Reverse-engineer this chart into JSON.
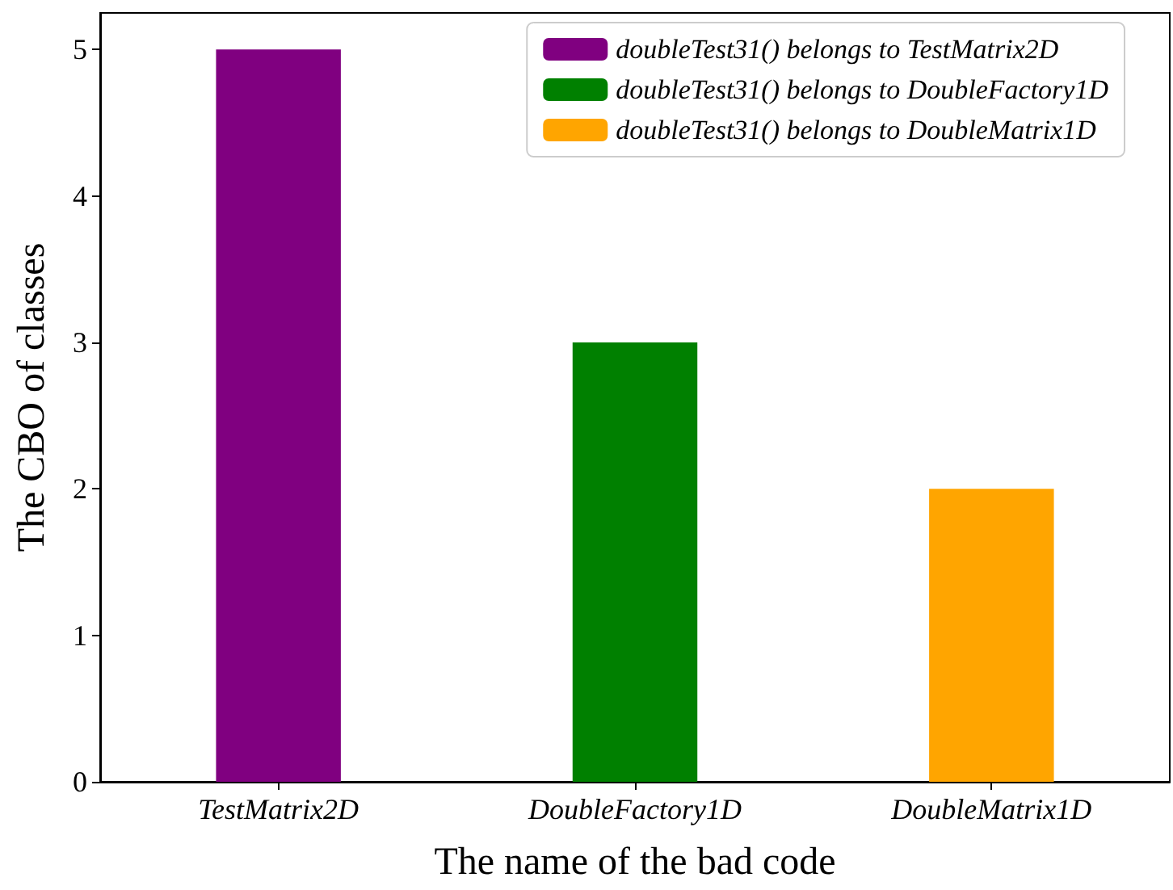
{
  "chart_data": {
    "type": "bar",
    "xlabel": "The name of the bad code",
    "ylabel": "The CBO of classes",
    "categories": [
      "TestMatrix2D",
      "DoubleFactory1D",
      "DoubleMatrix1D"
    ],
    "series": [
      {
        "name": "doubleTest31() belongs to TestMatrix2D",
        "color": "#800080",
        "values": [
          5,
          null,
          null
        ]
      },
      {
        "name": "doubleTest31() belongs to DoubleFactory1D",
        "color": "#008000",
        "values": [
          null,
          3,
          null
        ]
      },
      {
        "name": "doubleTest31() belongs to DoubleMatrix1D",
        "color": "#ffa500",
        "values": [
          null,
          null,
          2
        ]
      }
    ],
    "ylim": [
      0,
      5.25
    ],
    "yticks": [
      0,
      1,
      2,
      3,
      4,
      5
    ],
    "grid": false,
    "legend": "top right"
  }
}
